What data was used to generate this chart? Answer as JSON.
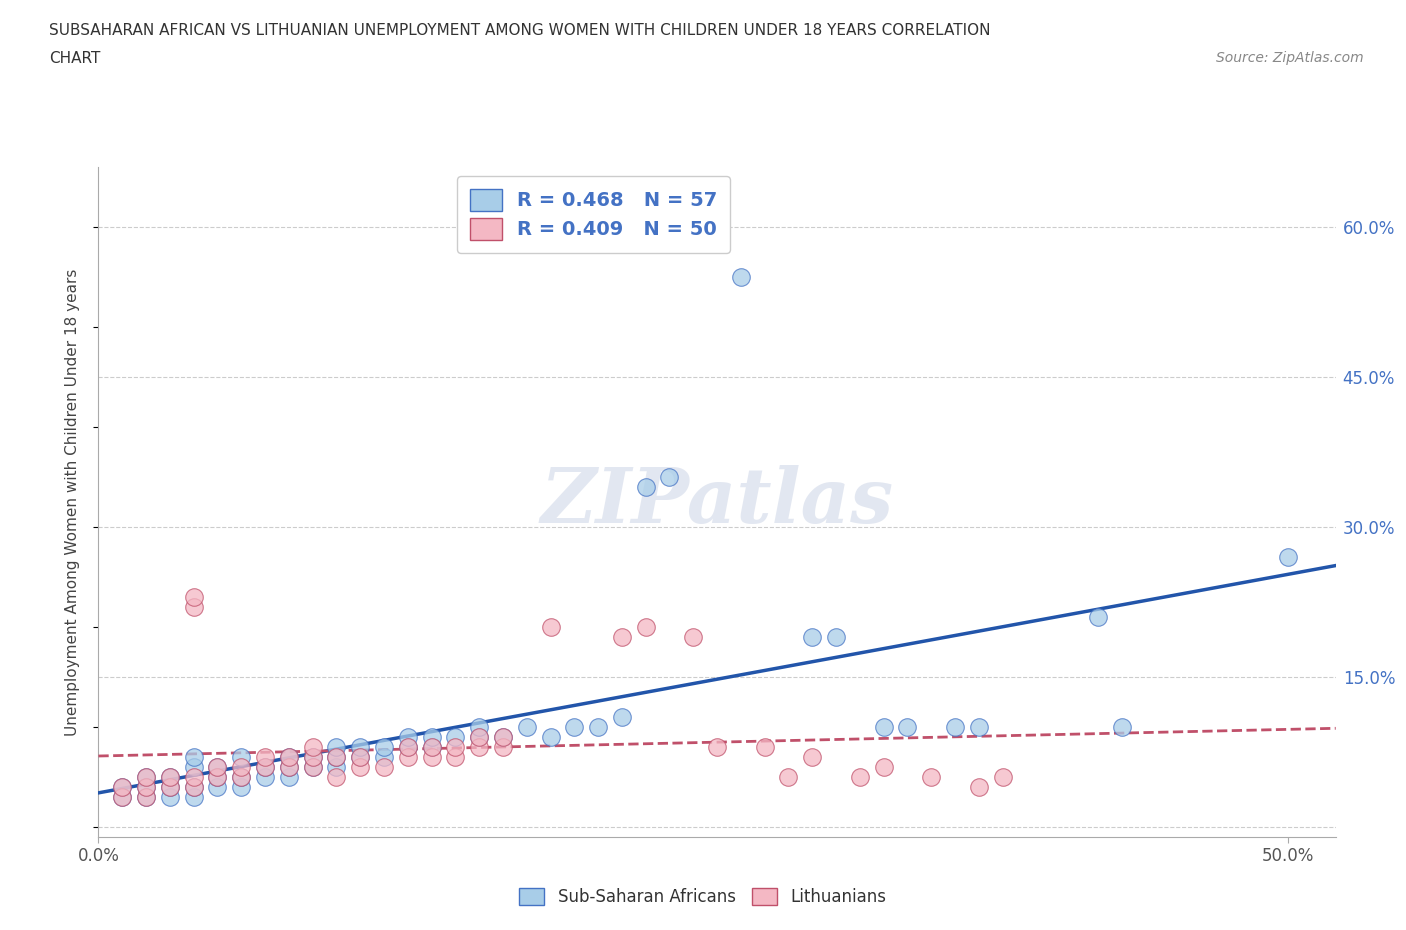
{
  "title_line1": "SUBSAHARAN AFRICAN VS LITHUANIAN UNEMPLOYMENT AMONG WOMEN WITH CHILDREN UNDER 18 YEARS CORRELATION",
  "title_line2": "CHART",
  "source": "Source: ZipAtlas.com",
  "xlim": [
    0.0,
    0.52
  ],
  "ylim": [
    -0.01,
    0.66
  ],
  "r_blue": 0.468,
  "n_blue": 57,
  "r_pink": 0.409,
  "n_pink": 50,
  "legend_label_blue": "Sub-Saharan Africans",
  "legend_label_pink": "Lithuanians",
  "blue_color": "#A8CDE8",
  "pink_color": "#F4B8C4",
  "blue_edge": "#4472C4",
  "pink_edge": "#C0506A",
  "trend_blue_color": "#2255AA",
  "trend_pink_color": "#C0506A",
  "trend_pink_dash": true,
  "grid_color": "#CCCCCC",
  "background_color": "#FFFFFF",
  "watermark": "ZIPatlas",
  "blue_points": [
    [
      0.01,
      0.03
    ],
    [
      0.01,
      0.04
    ],
    [
      0.02,
      0.03
    ],
    [
      0.02,
      0.04
    ],
    [
      0.02,
      0.05
    ],
    [
      0.03,
      0.03
    ],
    [
      0.03,
      0.04
    ],
    [
      0.03,
      0.05
    ],
    [
      0.04,
      0.03
    ],
    [
      0.04,
      0.04
    ],
    [
      0.04,
      0.06
    ],
    [
      0.04,
      0.07
    ],
    [
      0.05,
      0.04
    ],
    [
      0.05,
      0.05
    ],
    [
      0.05,
      0.06
    ],
    [
      0.06,
      0.04
    ],
    [
      0.06,
      0.05
    ],
    [
      0.06,
      0.07
    ],
    [
      0.07,
      0.05
    ],
    [
      0.07,
      0.06
    ],
    [
      0.08,
      0.05
    ],
    [
      0.08,
      0.06
    ],
    [
      0.08,
      0.07
    ],
    [
      0.09,
      0.06
    ],
    [
      0.09,
      0.07
    ],
    [
      0.1,
      0.06
    ],
    [
      0.1,
      0.07
    ],
    [
      0.1,
      0.08
    ],
    [
      0.11,
      0.07
    ],
    [
      0.11,
      0.08
    ],
    [
      0.12,
      0.07
    ],
    [
      0.12,
      0.08
    ],
    [
      0.13,
      0.08
    ],
    [
      0.13,
      0.09
    ],
    [
      0.14,
      0.08
    ],
    [
      0.14,
      0.09
    ],
    [
      0.15,
      0.09
    ],
    [
      0.16,
      0.09
    ],
    [
      0.16,
      0.1
    ],
    [
      0.17,
      0.09
    ],
    [
      0.18,
      0.1
    ],
    [
      0.19,
      0.09
    ],
    [
      0.2,
      0.1
    ],
    [
      0.21,
      0.1
    ],
    [
      0.22,
      0.11
    ],
    [
      0.23,
      0.34
    ],
    [
      0.24,
      0.35
    ],
    [
      0.27,
      0.55
    ],
    [
      0.3,
      0.19
    ],
    [
      0.31,
      0.19
    ],
    [
      0.33,
      0.1
    ],
    [
      0.34,
      0.1
    ],
    [
      0.36,
      0.1
    ],
    [
      0.37,
      0.1
    ],
    [
      0.42,
      0.21
    ],
    [
      0.43,
      0.1
    ],
    [
      0.5,
      0.27
    ]
  ],
  "pink_points": [
    [
      0.01,
      0.03
    ],
    [
      0.01,
      0.04
    ],
    [
      0.02,
      0.03
    ],
    [
      0.02,
      0.04
    ],
    [
      0.02,
      0.05
    ],
    [
      0.03,
      0.04
    ],
    [
      0.03,
      0.05
    ],
    [
      0.04,
      0.04
    ],
    [
      0.04,
      0.05
    ],
    [
      0.04,
      0.22
    ],
    [
      0.04,
      0.23
    ],
    [
      0.05,
      0.05
    ],
    [
      0.05,
      0.06
    ],
    [
      0.06,
      0.05
    ],
    [
      0.06,
      0.06
    ],
    [
      0.07,
      0.06
    ],
    [
      0.07,
      0.07
    ],
    [
      0.08,
      0.06
    ],
    [
      0.08,
      0.07
    ],
    [
      0.09,
      0.06
    ],
    [
      0.09,
      0.07
    ],
    [
      0.09,
      0.08
    ],
    [
      0.1,
      0.05
    ],
    [
      0.1,
      0.07
    ],
    [
      0.11,
      0.06
    ],
    [
      0.11,
      0.07
    ],
    [
      0.12,
      0.06
    ],
    [
      0.13,
      0.07
    ],
    [
      0.13,
      0.08
    ],
    [
      0.14,
      0.07
    ],
    [
      0.14,
      0.08
    ],
    [
      0.15,
      0.07
    ],
    [
      0.15,
      0.08
    ],
    [
      0.16,
      0.08
    ],
    [
      0.16,
      0.09
    ],
    [
      0.17,
      0.08
    ],
    [
      0.17,
      0.09
    ],
    [
      0.19,
      0.2
    ],
    [
      0.22,
      0.19
    ],
    [
      0.23,
      0.2
    ],
    [
      0.25,
      0.19
    ],
    [
      0.26,
      0.08
    ],
    [
      0.28,
      0.08
    ],
    [
      0.29,
      0.05
    ],
    [
      0.3,
      0.07
    ],
    [
      0.32,
      0.05
    ],
    [
      0.33,
      0.06
    ],
    [
      0.35,
      0.05
    ],
    [
      0.37,
      0.04
    ],
    [
      0.38,
      0.05
    ]
  ]
}
